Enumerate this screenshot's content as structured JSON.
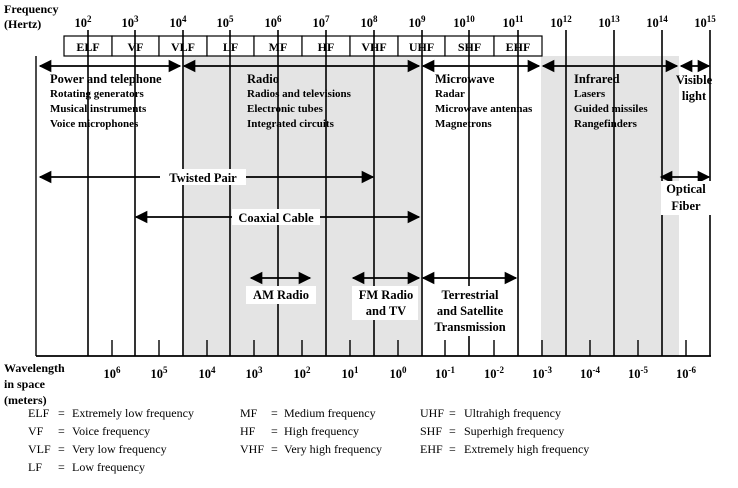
{
  "frequency_axis": {
    "title_line1": "Frequency",
    "title_line2": "(Hertz)",
    "exponents": [
      "2",
      "3",
      "4",
      "5",
      "6",
      "7",
      "8",
      "9",
      "10",
      "11",
      "12",
      "13",
      "14",
      "15"
    ],
    "base": "10"
  },
  "bands": [
    "ELF",
    "VF",
    "VLF",
    "LF",
    "MF",
    "HF",
    "VHF",
    "UHF",
    "SHF",
    "EHF"
  ],
  "regions": [
    {
      "title": "Power and telephone",
      "items": [
        "Rotating generators",
        "Musical instruments",
        "Voice microphones"
      ]
    },
    {
      "title": "Radio",
      "items": [
        "Radios and televisions",
        "Electronic tubes",
        "Integrated circuits"
      ]
    },
    {
      "title": "Microwave",
      "items": [
        "Radar",
        "Microwave antennas",
        "Magnetrons"
      ]
    },
    {
      "title": "Infrared",
      "items": [
        "Lasers",
        "Guided missiles",
        "Rangefinders"
      ]
    },
    {
      "title": "Visible light",
      "items": []
    }
  ],
  "visible_line1": "Visible",
  "visible_line2": "light",
  "media": {
    "twisted_pair": "Twisted Pair",
    "coaxial_cable": "Coaxial Cable",
    "optical_fiber_line1": "Optical",
    "optical_fiber_line2": "Fiber",
    "am_radio": "AM Radio",
    "fm_radio_line1": "FM Radio",
    "fm_radio_line2": "and TV",
    "terrestrial_line1": "Terrestrial",
    "terrestrial_line2": "and Satellite",
    "terrestrial_line3": "Transmission"
  },
  "wavelength_axis": {
    "title_line1": "Wavelength",
    "title_line2": "in space",
    "title_line3": "(meters)",
    "base": "10",
    "exponents": [
      "6",
      "5",
      "4",
      "3",
      "2",
      "1",
      "0",
      "-1",
      "-2",
      "-3",
      "-4",
      "-5",
      "-6"
    ]
  },
  "legend": [
    {
      "abbr": "ELF",
      "text": "Extremely low frequency"
    },
    {
      "abbr": "VF",
      "text": "Voice frequency"
    },
    {
      "abbr": "VLF",
      "text": "Very low frequency"
    },
    {
      "abbr": "LF",
      "text": "Low frequency"
    },
    {
      "abbr": "MF",
      "text": "Medium frequency"
    },
    {
      "abbr": "HF",
      "text": "High frequency"
    },
    {
      "abbr": "VHF",
      "text": "Very high frequency"
    },
    {
      "abbr": "UHF",
      "text": "Ultrahigh frequency"
    },
    {
      "abbr": "SHF",
      "text": "Superhigh frequency"
    },
    {
      "abbr": "EHF",
      "text": "Extremely high frequency"
    }
  ],
  "colors": {
    "shade": "#e4e4e4",
    "ink": "#000000"
  }
}
